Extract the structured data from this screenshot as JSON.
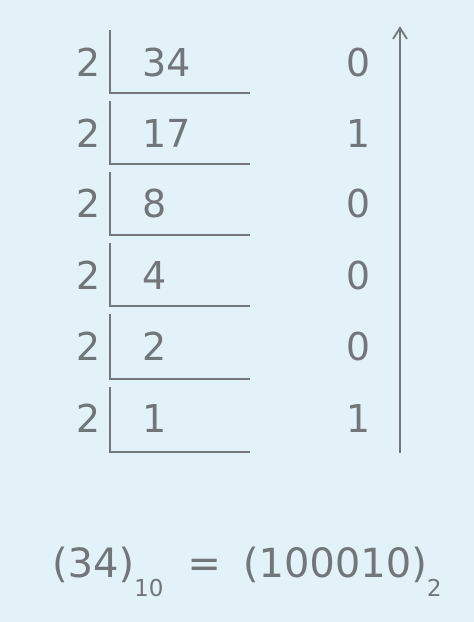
{
  "rows": [
    {
      "divisor": "2",
      "dividend": "34",
      "remainder": "0"
    },
    {
      "divisor": "2",
      "dividend": "17",
      "remainder": "1"
    },
    {
      "divisor": "2",
      "dividend": "8",
      "remainder": "0"
    },
    {
      "divisor": "2",
      "dividend": "4",
      "remainder": "0"
    },
    {
      "divisor": "2",
      "dividend": "2",
      "remainder": "0"
    },
    {
      "divisor": "2",
      "dividend": "1",
      "remainder": "1"
    }
  ],
  "formula": {
    "left": "(34)",
    "left_base": "10",
    "equals": "=",
    "right": "(100010)",
    "right_base": "2"
  },
  "colors": {
    "background": "#e3f1f8",
    "ink": "#70767a"
  }
}
